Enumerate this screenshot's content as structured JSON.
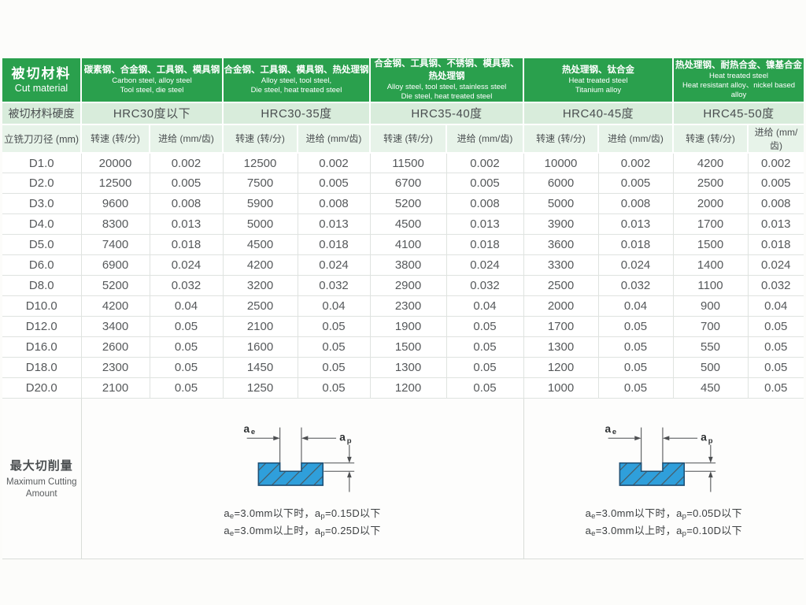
{
  "colors": {
    "header_green": "#2aa04d",
    "hardness_row_green": "#d8ecdb",
    "subheader_row_green": "#e7f3e9",
    "data_text_gray": "#56595b",
    "grid_line": "#dfe3e0",
    "diagram_blue_fill": "#2f9fdb",
    "diagram_blue_hatch": "#1a6dad"
  },
  "labels": {
    "cut_material_cn": "被切材料",
    "cut_material_en": "Cut material",
    "hardness_row": "被切材料硬度",
    "diameter": "立铣刀刃径 (mm)",
    "speed": "转速 (转/分)",
    "feed": "进给 (mm/齿)"
  },
  "groups": [
    {
      "material_cn": "碳素钢、合金钢、工具钢、模具钢",
      "material_en1": "Carbon steel,  alloy steel",
      "material_en2": "Tool steel,  die steel",
      "hardness": "HRC30度以下"
    },
    {
      "material_cn": "合金钢、工具钢、模具钢、热处理钢",
      "material_en1": "Alloy steel, tool steel,",
      "material_en2": "Die steel, heat treated steel",
      "hardness": "HRC30-35度"
    },
    {
      "material_cn": "合金钢、工具钢、不锈钢、模具钢、热处理钢",
      "material_en1": "Alloy steel, tool steel, stainless steel",
      "material_en2": "Die steel, heat treated steel",
      "hardness": "HRC35-40度"
    },
    {
      "material_cn": "热处理钢、钛合金",
      "material_en1": "Heat treated steel",
      "material_en2": "Titanium alloy",
      "hardness": "HRC40-45度"
    },
    {
      "material_cn": "热处理钢、耐热合金、镍基合金",
      "material_en1": "Heat treated steel",
      "material_en2": "Heat resistant alloy、nickel based alloy",
      "hardness": "HRC45-50度"
    }
  ],
  "rows": [
    {
      "d": "D1.0",
      "values": [
        "20000",
        "0.002",
        "12500",
        "0.002",
        "11500",
        "0.002",
        "10000",
        "0.002",
        "4200",
        "0.002"
      ]
    },
    {
      "d": "D2.0",
      "values": [
        "12500",
        "0.005",
        "7500",
        "0.005",
        "6700",
        "0.005",
        "6000",
        "0.005",
        "2500",
        "0.005"
      ]
    },
    {
      "d": "D3.0",
      "values": [
        "9600",
        "0.008",
        "5900",
        "0.008",
        "5200",
        "0.008",
        "5000",
        "0.008",
        "2000",
        "0.008"
      ]
    },
    {
      "d": "D4.0",
      "values": [
        "8300",
        "0.013",
        "5000",
        "0.013",
        "4500",
        "0.013",
        "3900",
        "0.013",
        "1700",
        "0.013"
      ]
    },
    {
      "d": "D5.0",
      "values": [
        "7400",
        "0.018",
        "4500",
        "0.018",
        "4100",
        "0.018",
        "3600",
        "0.018",
        "1500",
        "0.018"
      ]
    },
    {
      "d": "D6.0",
      "values": [
        "6900",
        "0.024",
        "4200",
        "0.024",
        "3800",
        "0.024",
        "3300",
        "0.024",
        "1400",
        "0.024"
      ]
    },
    {
      "d": "D8.0",
      "values": [
        "5200",
        "0.032",
        "3200",
        "0.032",
        "2900",
        "0.032",
        "2500",
        "0.032",
        "1100",
        "0.032"
      ]
    },
    {
      "d": "D10.0",
      "values": [
        "4200",
        "0.04",
        "2500",
        "0.04",
        "2300",
        "0.04",
        "2000",
        "0.04",
        "900",
        "0.04"
      ]
    },
    {
      "d": "D12.0",
      "values": [
        "3400",
        "0.05",
        "2100",
        "0.05",
        "1900",
        "0.05",
        "1700",
        "0.05",
        "700",
        "0.05"
      ]
    },
    {
      "d": "D16.0",
      "values": [
        "2600",
        "0.05",
        "1600",
        "0.05",
        "1500",
        "0.05",
        "1300",
        "0.05",
        "550",
        "0.05"
      ]
    },
    {
      "d": "D18.0",
      "values": [
        "2300",
        "0.05",
        "1450",
        "0.05",
        "1300",
        "0.05",
        "1200",
        "0.05",
        "500",
        "0.05"
      ]
    },
    {
      "d": "D20.0",
      "values": [
        "2100",
        "0.05",
        "1250",
        "0.05",
        "1200",
        "0.05",
        "1000",
        "0.05",
        "450",
        "0.05"
      ]
    }
  ],
  "max_cutting": {
    "label_cn": "最大切削量",
    "label_en1": "Maximum Cutting",
    "label_en2": "Amount",
    "dim": {
      "a": "a",
      "e": "e",
      "p": "p"
    },
    "diagrams": [
      {
        "line1": {
          "a1": "a",
          "s1": "e",
          "m": "=3.0mm以下时，",
          "a2": "a",
          "s2": "p",
          "v": "=0.15D以下"
        },
        "line2": {
          "a1": "a",
          "s1": "e",
          "m": "=3.0mm以上时，",
          "a2": "a",
          "s2": "p",
          "v": "=0.25D以下"
        }
      },
      {
        "line1": {
          "a1": "a",
          "s1": "e",
          "m": "=3.0mm以下时，",
          "a2": "a",
          "s2": "p",
          "v": "=0.05D以下"
        },
        "line2": {
          "a1": "a",
          "s1": "e",
          "m": "=3.0mm以上时，",
          "a2": "a",
          "s2": "p",
          "v": "=0.10D以下"
        }
      }
    ]
  }
}
